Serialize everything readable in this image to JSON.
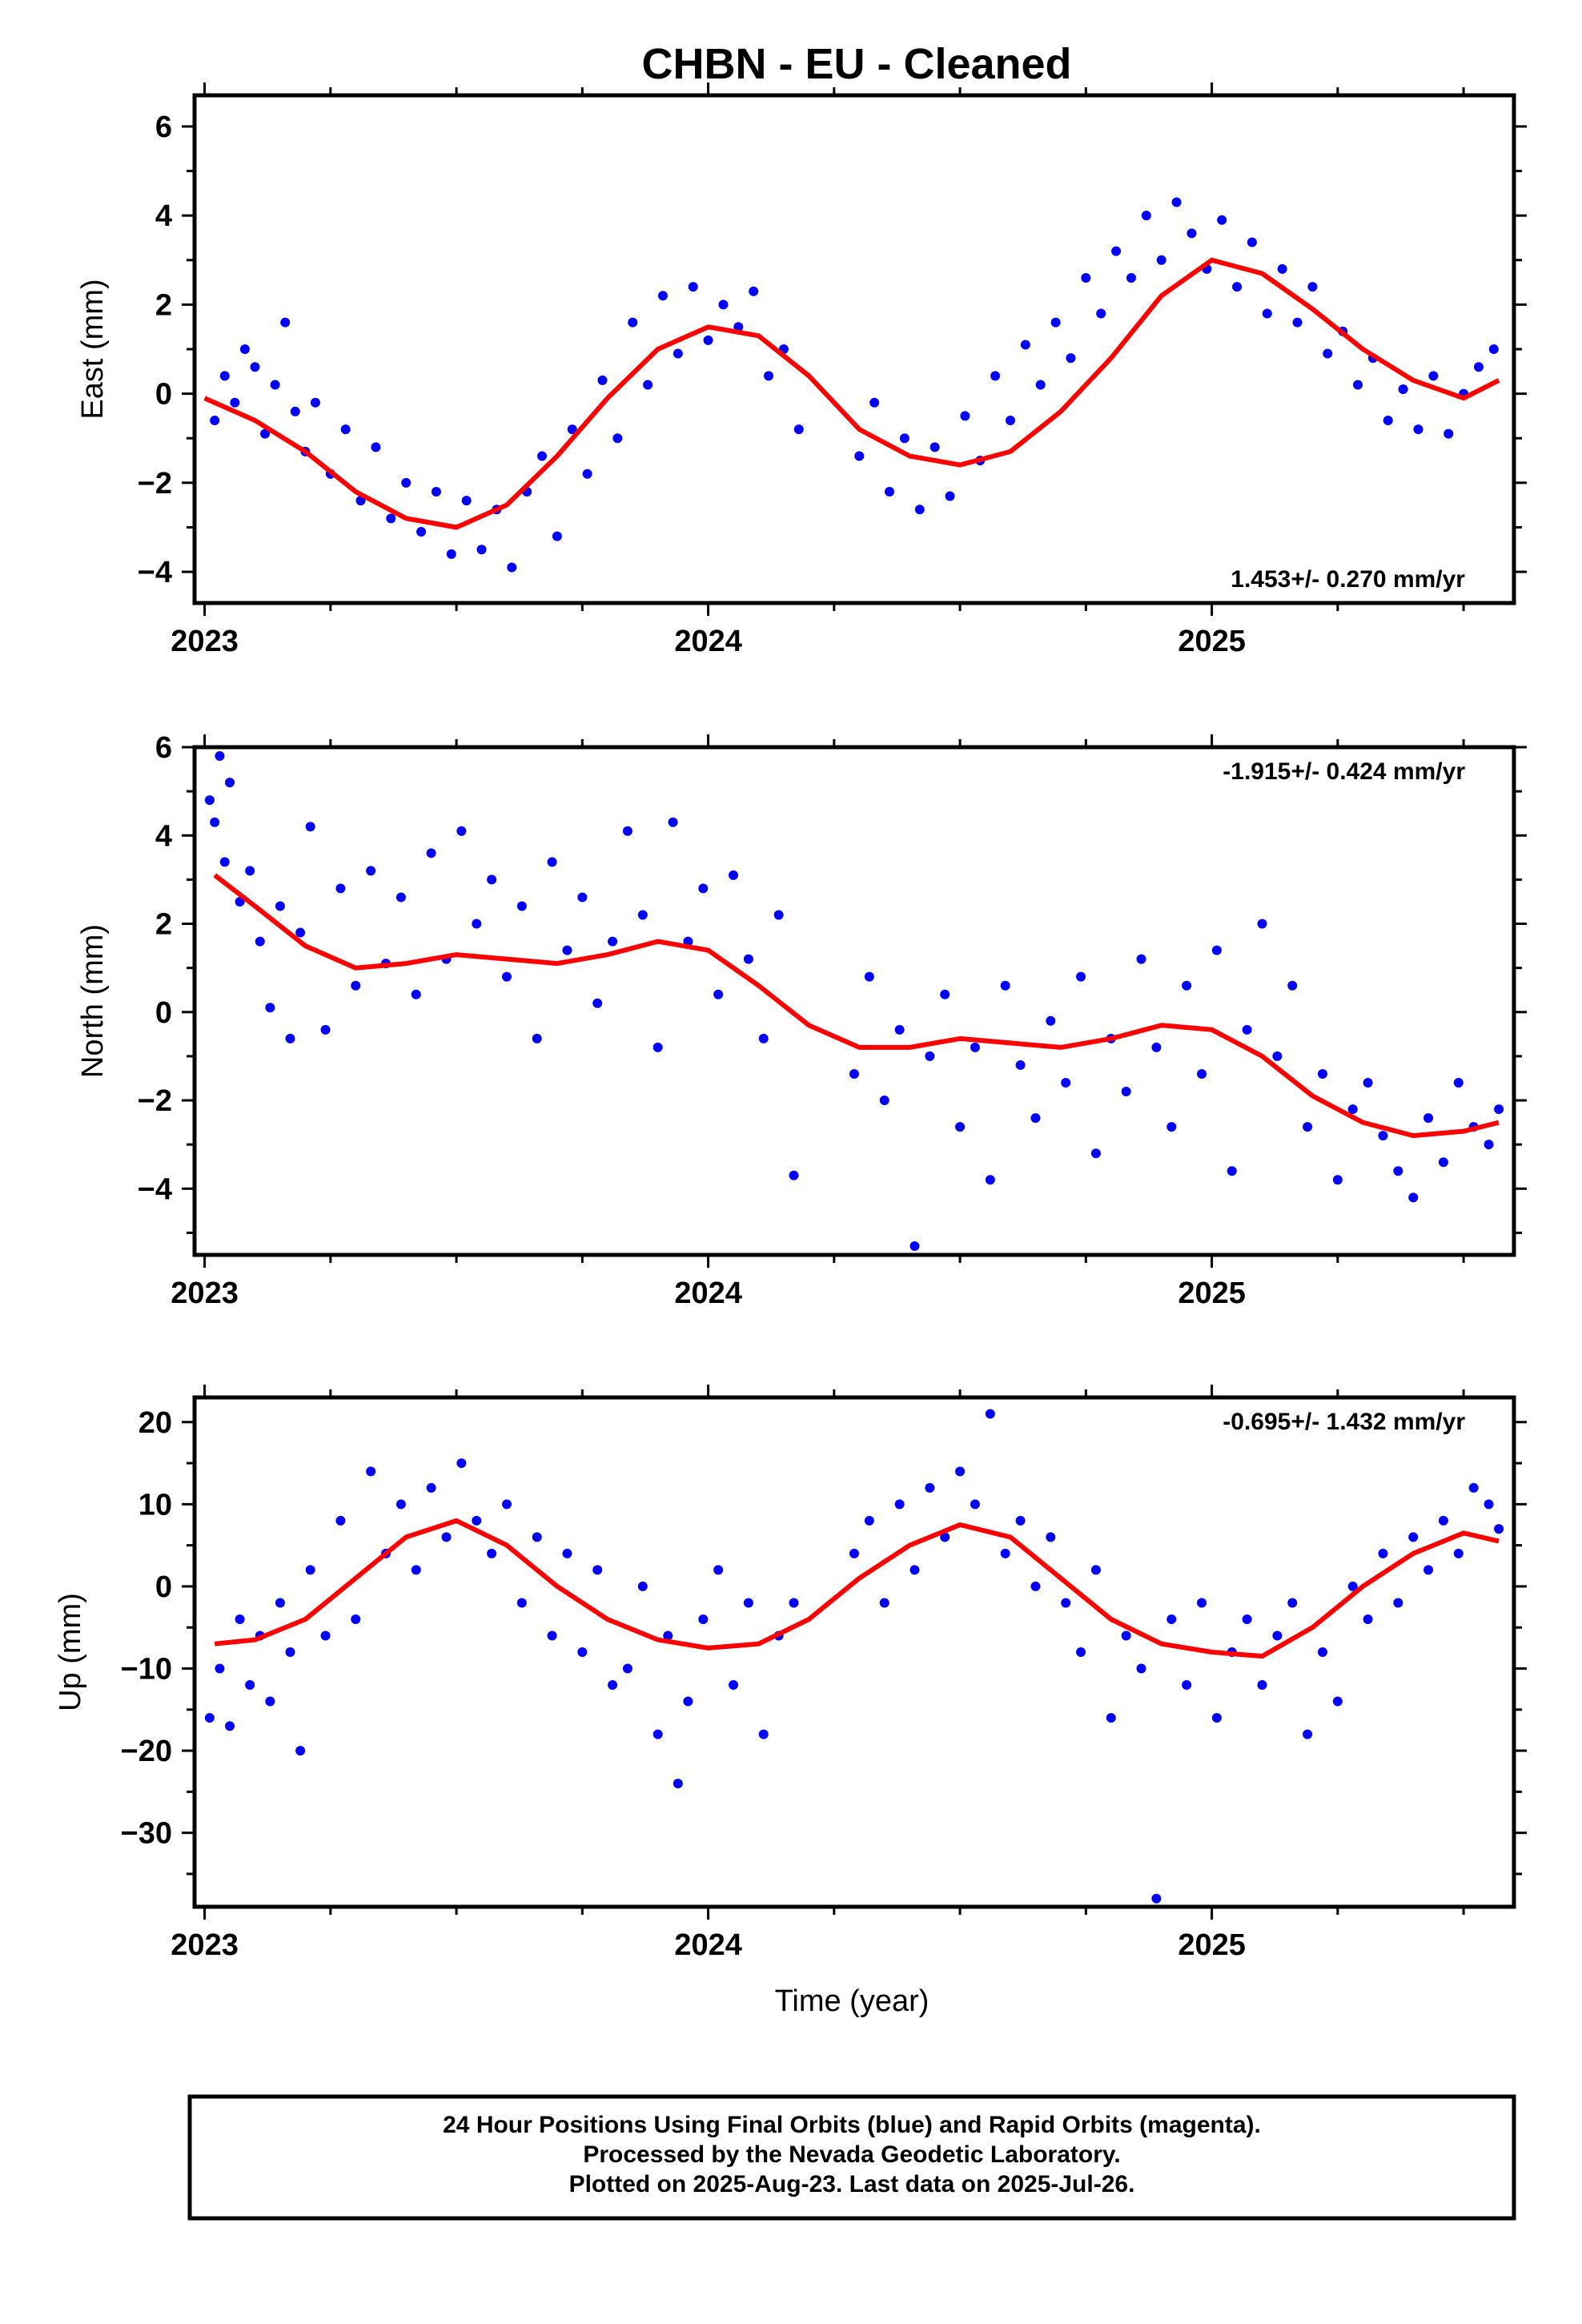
{
  "colors": {
    "points": "#0000ff",
    "fit": "#ff0000",
    "frame": "#000000"
  },
  "footer": {
    "line1": "24 Hour Positions Using Final Orbits (blue) and Rapid Orbits (magenta).",
    "line2": "Processed by the Nevada Geodetic Laboratory.",
    "line3": "Plotted on 2025-Aug-23. Last data on 2025-Jul-26."
  },
  "chart_data": [
    {
      "type": "scatter",
      "title": "CHBN  - EU - Cleaned",
      "ylabel": "East (mm)",
      "xlabel": "",
      "x_ticks": [
        "2023",
        "2024",
        "2025"
      ],
      "y_ticks": [
        -4,
        -2,
        0,
        2,
        4,
        6
      ],
      "xlim": [
        2022.98,
        2025.6
      ],
      "ylim": [
        -4.7,
        6.7
      ],
      "rate_annotation": "1.453+/- 0.270 mm/yr",
      "grid": false,
      "series": [
        {
          "kind": "points",
          "x": [
            2023.02,
            2023.04,
            2023.06,
            2023.08,
            2023.1,
            2023.12,
            2023.14,
            2023.16,
            2023.18,
            2023.2,
            2023.22,
            2023.25,
            2023.28,
            2023.31,
            2023.34,
            2023.37,
            2023.4,
            2023.43,
            2023.46,
            2023.49,
            2023.52,
            2023.55,
            2023.58,
            2023.61,
            2023.64,
            2023.67,
            2023.7,
            2023.73,
            2023.76,
            2023.79,
            2023.82,
            2023.85,
            2023.88,
            2023.91,
            2023.94,
            2023.97,
            2024.0,
            2024.03,
            2024.06,
            2024.09,
            2024.12,
            2024.15,
            2024.18,
            2024.3,
            2024.33,
            2024.36,
            2024.39,
            2024.42,
            2024.45,
            2024.48,
            2024.51,
            2024.54,
            2024.57,
            2024.6,
            2024.63,
            2024.66,
            2024.69,
            2024.72,
            2024.75,
            2024.78,
            2024.81,
            2024.84,
            2024.87,
            2024.9,
            2024.93,
            2024.96,
            2024.99,
            2025.02,
            2025.05,
            2025.08,
            2025.11,
            2025.14,
            2025.17,
            2025.2,
            2025.23,
            2025.26,
            2025.29,
            2025.32,
            2025.35,
            2025.38,
            2025.41,
            2025.44,
            2025.47,
            2025.5,
            2025.53,
            2025.56
          ],
          "y": [
            -0.6,
            0.4,
            -0.2,
            1.0,
            0.6,
            -0.9,
            0.2,
            1.6,
            -0.4,
            -1.3,
            -0.2,
            -1.8,
            -0.8,
            -2.4,
            -1.2,
            -2.8,
            -2.0,
            -3.1,
            -2.2,
            -3.6,
            -2.4,
            -3.5,
            -2.6,
            -3.9,
            -2.2,
            -1.4,
            -3.2,
            -0.8,
            -1.8,
            0.3,
            -1.0,
            1.6,
            0.2,
            2.2,
            0.9,
            2.4,
            1.2,
            2.0,
            1.5,
            2.3,
            0.4,
            1.0,
            -0.8,
            -1.4,
            -0.2,
            -2.2,
            -1.0,
            -2.6,
            -1.2,
            -2.3,
            -0.5,
            -1.5,
            0.4,
            -0.6,
            1.1,
            0.2,
            1.6,
            0.8,
            2.6,
            1.8,
            3.2,
            2.6,
            4.0,
            3.0,
            4.3,
            3.6,
            2.8,
            3.9,
            2.4,
            3.4,
            1.8,
            2.8,
            1.6,
            2.4,
            0.9,
            1.4,
            0.2,
            0.8,
            -0.6,
            0.1,
            -0.8,
            0.4,
            -0.9,
            0.0,
            0.6,
            1.0
          ]
        },
        {
          "kind": "fit",
          "x": [
            2023.0,
            2023.1,
            2023.2,
            2023.3,
            2023.4,
            2023.5,
            2023.6,
            2023.7,
            2023.8,
            2023.9,
            2024.0,
            2024.1,
            2024.2,
            2024.3,
            2024.4,
            2024.5,
            2024.6,
            2024.7,
            2024.8,
            2024.9,
            2025.0,
            2025.1,
            2025.2,
            2025.3,
            2025.4,
            2025.5,
            2025.57
          ],
          "y": [
            -0.1,
            -0.6,
            -1.3,
            -2.2,
            -2.8,
            -3.0,
            -2.5,
            -1.4,
            -0.1,
            1.0,
            1.5,
            1.3,
            0.4,
            -0.8,
            -1.4,
            -1.6,
            -1.3,
            -0.4,
            0.8,
            2.2,
            3.0,
            2.7,
            1.9,
            1.0,
            0.3,
            -0.1,
            0.3
          ]
        }
      ]
    },
    {
      "type": "scatter",
      "title": "",
      "ylabel": "North (mm)",
      "xlabel": "",
      "x_ticks": [
        "2023",
        "2024",
        "2025"
      ],
      "y_ticks": [
        -4,
        -2,
        0,
        2,
        4,
        6
      ],
      "xlim": [
        2022.98,
        2025.6
      ],
      "ylim": [
        -5.5,
        6.0
      ],
      "rate_annotation": "-1.915+/- 0.424 mm/yr",
      "grid": false,
      "series": [
        {
          "kind": "points",
          "x": [
            2023.01,
            2023.02,
            2023.03,
            2023.04,
            2023.05,
            2023.07,
            2023.09,
            2023.11,
            2023.13,
            2023.15,
            2023.17,
            2023.19,
            2023.21,
            2023.24,
            2023.27,
            2023.3,
            2023.33,
            2023.36,
            2023.39,
            2023.42,
            2023.45,
            2023.48,
            2023.51,
            2023.54,
            2023.57,
            2023.6,
            2023.63,
            2023.66,
            2023.69,
            2023.72,
            2023.75,
            2023.78,
            2023.81,
            2023.84,
            2023.87,
            2023.9,
            2023.93,
            2023.96,
            2023.99,
            2024.02,
            2024.05,
            2024.08,
            2024.11,
            2024.14,
            2024.17,
            2024.29,
            2024.32,
            2024.35,
            2024.38,
            2024.41,
            2024.44,
            2024.47,
            2024.5,
            2024.53,
            2024.56,
            2024.59,
            2024.62,
            2024.65,
            2024.68,
            2024.71,
            2024.74,
            2024.77,
            2024.8,
            2024.83,
            2024.86,
            2024.89,
            2024.92,
            2024.95,
            2024.98,
            2025.01,
            2025.04,
            2025.07,
            2025.1,
            2025.13,
            2025.16,
            2025.19,
            2025.22,
            2025.25,
            2025.28,
            2025.31,
            2025.34,
            2025.37,
            2025.4,
            2025.43,
            2025.46,
            2025.49,
            2025.52,
            2025.55,
            2025.57
          ],
          "y": [
            4.8,
            4.3,
            5.8,
            3.4,
            5.2,
            2.5,
            3.2,
            1.6,
            0.1,
            2.4,
            -0.6,
            1.8,
            4.2,
            -0.4,
            2.8,
            0.6,
            3.2,
            1.1,
            2.6,
            0.4,
            3.6,
            1.2,
            4.1,
            2.0,
            3.0,
            0.8,
            2.4,
            -0.6,
            3.4,
            1.4,
            2.6,
            0.2,
            1.6,
            4.1,
            2.2,
            -0.8,
            4.3,
            1.6,
            2.8,
            0.4,
            3.1,
            1.2,
            -0.6,
            2.2,
            -3.7,
            -1.4,
            0.8,
            -2.0,
            -0.4,
            -5.3,
            -1.0,
            0.4,
            -2.6,
            -0.8,
            -3.8,
            0.6,
            -1.2,
            -2.4,
            -0.2,
            -1.6,
            0.8,
            -3.2,
            -0.6,
            -1.8,
            1.2,
            -0.8,
            -2.6,
            0.6,
            -1.4,
            1.4,
            -3.6,
            -0.4,
            2.0,
            -1.0,
            0.6,
            -2.6,
            -1.4,
            -3.8,
            -2.2,
            -1.6,
            -2.8,
            -3.6,
            -4.2,
            -2.4,
            -3.4,
            -1.6,
            -2.6,
            -3.0,
            -2.2
          ]
        },
        {
          "kind": "fit",
          "x": [
            2023.02,
            2023.1,
            2023.2,
            2023.3,
            2023.4,
            2023.5,
            2023.6,
            2023.7,
            2023.8,
            2023.9,
            2024.0,
            2024.1,
            2024.2,
            2024.3,
            2024.4,
            2024.5,
            2024.6,
            2024.7,
            2024.8,
            2024.9,
            2025.0,
            2025.1,
            2025.2,
            2025.3,
            2025.4,
            2025.5,
            2025.57
          ],
          "y": [
            3.1,
            2.4,
            1.5,
            1.0,
            1.1,
            1.3,
            1.2,
            1.1,
            1.3,
            1.6,
            1.4,
            0.6,
            -0.3,
            -0.8,
            -0.8,
            -0.6,
            -0.7,
            -0.8,
            -0.6,
            -0.3,
            -0.4,
            -1.0,
            -1.9,
            -2.5,
            -2.8,
            -2.7,
            -2.5
          ]
        }
      ]
    },
    {
      "type": "scatter",
      "title": "",
      "ylabel": "Up (mm)",
      "xlabel": "Time (year)",
      "x_ticks": [
        "2023",
        "2024",
        "2025"
      ],
      "y_ticks": [
        -30,
        -20,
        -10,
        0,
        10,
        20
      ],
      "xlim": [
        2022.98,
        2025.6
      ],
      "ylim": [
        -39,
        23
      ],
      "rate_annotation": "-0.695+/- 1.432 mm/yr",
      "grid": false,
      "series": [
        {
          "kind": "points",
          "x": [
            2023.01,
            2023.03,
            2023.05,
            2023.07,
            2023.09,
            2023.11,
            2023.13,
            2023.15,
            2023.17,
            2023.19,
            2023.21,
            2023.24,
            2023.27,
            2023.3,
            2023.33,
            2023.36,
            2023.39,
            2023.42,
            2023.45,
            2023.48,
            2023.51,
            2023.54,
            2023.57,
            2023.6,
            2023.63,
            2023.66,
            2023.69,
            2023.72,
            2023.75,
            2023.78,
            2023.81,
            2023.84,
            2023.87,
            2023.9,
            2023.92,
            2023.94,
            2023.96,
            2023.99,
            2024.02,
            2024.05,
            2024.08,
            2024.11,
            2024.14,
            2024.17,
            2024.29,
            2024.32,
            2024.35,
            2024.38,
            2024.41,
            2024.44,
            2024.47,
            2024.5,
            2024.53,
            2024.56,
            2024.59,
            2024.62,
            2024.65,
            2024.68,
            2024.71,
            2024.74,
            2024.77,
            2024.8,
            2024.83,
            2024.86,
            2024.89,
            2024.92,
            2024.95,
            2024.98,
            2025.01,
            2025.04,
            2025.07,
            2025.1,
            2025.13,
            2025.16,
            2025.19,
            2025.22,
            2025.25,
            2025.28,
            2025.31,
            2025.34,
            2025.37,
            2025.4,
            2025.43,
            2025.46,
            2025.49,
            2025.52,
            2025.55,
            2025.57
          ],
          "y": [
            -16,
            -10,
            -17,
            -4,
            -12,
            -6,
            -14,
            -2,
            -8,
            -20,
            2,
            -6,
            8,
            -4,
            14,
            4,
            10,
            2,
            12,
            6,
            15,
            8,
            4,
            10,
            -2,
            6,
            -6,
            4,
            -8,
            2,
            -12,
            -10,
            0,
            -18,
            -6,
            -24,
            -14,
            -4,
            2,
            -12,
            -2,
            -18,
            -6,
            -2,
            4,
            8,
            -2,
            10,
            2,
            12,
            6,
            14,
            10,
            21,
            4,
            8,
            0,
            6,
            -2,
            -8,
            2,
            -16,
            -6,
            -10,
            -38,
            -4,
            -12,
            -2,
            -16,
            -8,
            -4,
            -12,
            -6,
            -2,
            -18,
            -8,
            -14,
            0,
            -4,
            4,
            -2,
            6,
            2,
            8,
            4,
            12,
            10,
            7
          ]
        },
        {
          "kind": "fit",
          "x": [
            2023.02,
            2023.1,
            2023.2,
            2023.3,
            2023.4,
            2023.5,
            2023.6,
            2023.7,
            2023.8,
            2023.9,
            2024.0,
            2024.1,
            2024.2,
            2024.3,
            2024.4,
            2024.5,
            2024.6,
            2024.7,
            2024.8,
            2024.9,
            2025.0,
            2025.1,
            2025.2,
            2025.3,
            2025.4,
            2025.5,
            2025.57
          ],
          "y": [
            -7,
            -6.5,
            -4,
            1,
            6,
            8,
            5,
            0,
            -4,
            -6.5,
            -7.5,
            -7,
            -4,
            1,
            5,
            7.5,
            6,
            1,
            -4,
            -7,
            -8,
            -8.5,
            -5,
            0,
            4,
            6.5,
            5.5
          ]
        }
      ]
    }
  ]
}
